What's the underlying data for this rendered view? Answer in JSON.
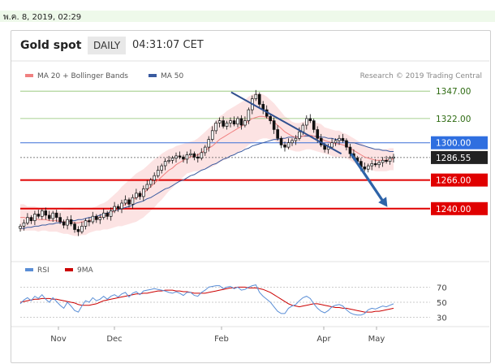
{
  "topbar": {
    "date_text": "พ.ค. 8, 2019, 02:29"
  },
  "header": {
    "title": "Gold spot",
    "period": "DAILY",
    "time": "04:31:07 CET"
  },
  "legend": {
    "ma20_label": "MA 20 + Bollinger Bands",
    "ma50_label": "MA 50",
    "research": "Research © 2019 Trading Central",
    "rsi_label": "RSI",
    "ma9_label": "9MA"
  },
  "colors": {
    "ma20": "#f08080",
    "ma50": "#3a5ba0",
    "band": "#fbd9d9",
    "resistance": "#8dc26f",
    "support": "#e00000",
    "pivot": "#3a6fd8",
    "trendline": "#2f4f8f",
    "arrow": "#2d63a8",
    "rsi": "#5a8ed6",
    "rsi_ma": "#cc0000"
  },
  "chart_data": [
    {
      "type": "line",
      "title": "Gold spot",
      "x_labels": [
        "Nov",
        "Dec",
        "Feb",
        "Apr",
        "May"
      ],
      "ylim": [
        1208,
        1356
      ],
      "levels": [
        {
          "value": 1347.0,
          "label": "1347.00",
          "kind": "resistance"
        },
        {
          "value": 1322.0,
          "label": "1322.00",
          "kind": "resistance"
        },
        {
          "value": 1300.0,
          "label": "1300.00",
          "kind": "pivot"
        },
        {
          "value": 1286.55,
          "label": "1286.55",
          "kind": "last"
        },
        {
          "value": 1266.0,
          "label": "1266.00",
          "kind": "support"
        },
        {
          "value": 1240.0,
          "label": "1240.00",
          "kind": "support"
        }
      ],
      "trendline": [
        [
          0.565,
          1346
        ],
        [
          0.86,
          1290
        ]
      ],
      "projection": [
        [
          0.86,
          1290
        ],
        [
          0.94,
          1240
        ]
      ],
      "close": [
        1224,
        1227,
        1232,
        1229,
        1235,
        1233,
        1238,
        1234,
        1231,
        1236,
        1232,
        1228,
        1225,
        1230,
        1226,
        1221,
        1219,
        1224,
        1229,
        1228,
        1233,
        1230,
        1232,
        1236,
        1233,
        1238,
        1242,
        1240,
        1245,
        1248,
        1244,
        1250,
        1254,
        1251,
        1258,
        1262,
        1266,
        1270,
        1275,
        1279,
        1283,
        1284,
        1286,
        1288,
        1287,
        1285,
        1289,
        1290,
        1287,
        1286,
        1291,
        1296,
        1303,
        1311,
        1318,
        1320,
        1315,
        1318,
        1320,
        1317,
        1322,
        1316,
        1320,
        1330,
        1340,
        1344,
        1335,
        1330,
        1324,
        1320,
        1312,
        1304,
        1298,
        1296,
        1300,
        1302,
        1304,
        1310,
        1316,
        1322,
        1320,
        1312,
        1304,
        1298,
        1294,
        1296,
        1300,
        1302,
        1304,
        1302,
        1296,
        1290,
        1286,
        1283,
        1278,
        1276,
        1279,
        1281,
        1280,
        1282,
        1284,
        1283,
        1286,
        1287
      ],
      "ma20": [
        1232,
        1232,
        1231,
        1231,
        1231,
        1230,
        1230,
        1230,
        1229,
        1229,
        1229,
        1228,
        1228,
        1228,
        1228,
        1227,
        1227,
        1228,
        1228,
        1229,
        1230,
        1231,
        1232,
        1233,
        1234,
        1236,
        1238,
        1240,
        1242,
        1244,
        1246,
        1248,
        1250,
        1252,
        1254,
        1257,
        1260,
        1263,
        1266,
        1269,
        1272,
        1275,
        1277,
        1280,
        1282,
        1284,
        1286,
        1287,
        1288,
        1289,
        1291,
        1293,
        1295,
        1297,
        1300,
        1303,
        1305,
        1307,
        1309,
        1311,
        1313,
        1315,
        1317,
        1320,
        1322,
        1323,
        1324,
        1324,
        1323,
        1321,
        1319,
        1316,
        1313,
        1310,
        1308,
        1306,
        1305,
        1305,
        1306,
        1307,
        1307,
        1306,
        1305,
        1304,
        1302,
        1301,
        1300,
        1299,
        1299,
        1298,
        1297,
        1295,
        1293,
        1291,
        1289,
        1287,
        1286,
        1285,
        1284,
        1284,
        1284,
        1284,
        1285,
        1285
      ],
      "ma50": [
        1222,
        1222,
        1223,
        1223,
        1224,
        1224,
        1225,
        1225,
        1226,
        1226,
        1227,
        1227,
        1228,
        1228,
        1229,
        1229,
        1230,
        1230,
        1231,
        1232,
        1232,
        1233,
        1234,
        1235,
        1236,
        1237,
        1238,
        1239,
        1240,
        1241,
        1242,
        1243,
        1245,
        1246,
        1247,
        1249,
        1250,
        1252,
        1254,
        1256,
        1258,
        1259,
        1261,
        1263,
        1265,
        1266,
        1268,
        1270,
        1271,
        1273,
        1275,
        1276,
        1278,
        1280,
        1281,
        1283,
        1285,
        1286,
        1288,
        1289,
        1291,
        1292,
        1294,
        1295,
        1297,
        1298,
        1299,
        1300,
        1301,
        1302,
        1303,
        1303,
        1304,
        1304,
        1305,
        1305,
        1305,
        1306,
        1306,
        1306,
        1306,
        1306,
        1306,
        1305,
        1305,
        1304,
        1304,
        1303,
        1303,
        1302,
        1301,
        1300,
        1300,
        1299,
        1298,
        1297,
        1296,
        1295,
        1294,
        1294,
        1293,
        1293,
        1292,
        1292
      ],
      "band_width": [
        12,
        12,
        11,
        11,
        11,
        11,
        10,
        10,
        10,
        10,
        10,
        10,
        11,
        11,
        12,
        12,
        12,
        12,
        12,
        11,
        11,
        11,
        12,
        12,
        13,
        14,
        15,
        16,
        18,
        19,
        20,
        21,
        22,
        22,
        22,
        22,
        22,
        22,
        21,
        21,
        20,
        19,
        18,
        17,
        16,
        15,
        14,
        14,
        14,
        15,
        16,
        17,
        18,
        19,
        20,
        21,
        21,
        22,
        22,
        22,
        22,
        22,
        22,
        22,
        22,
        22,
        21,
        20,
        19,
        18,
        17,
        16,
        15,
        14,
        14,
        13,
        13,
        13,
        13,
        13,
        13,
        13,
        13,
        13,
        12,
        12,
        12,
        12,
        12,
        11,
        11,
        11,
        11,
        11,
        11,
        11,
        10,
        10,
        10,
        10,
        10,
        10,
        10,
        10
      ]
    },
    {
      "type": "line",
      "title": "RSI",
      "ylim": [
        22,
        78
      ],
      "y_ticks": [
        70,
        50,
        30
      ],
      "rsi": [
        48,
        53,
        56,
        52,
        58,
        55,
        60,
        54,
        50,
        56,
        51,
        46,
        42,
        50,
        45,
        39,
        37,
        45,
        52,
        50,
        56,
        52,
        54,
        58,
        54,
        58,
        60,
        57,
        61,
        63,
        57,
        62,
        64,
        60,
        65,
        66,
        67,
        68,
        67,
        66,
        65,
        63,
        62,
        64,
        62,
        59,
        63,
        63,
        59,
        58,
        63,
        66,
        70,
        71,
        72,
        72,
        68,
        70,
        71,
        68,
        70,
        66,
        67,
        70,
        72,
        73,
        63,
        58,
        54,
        50,
        44,
        38,
        35,
        35,
        42,
        45,
        47,
        52,
        56,
        58,
        55,
        48,
        42,
        38,
        36,
        39,
        44,
        46,
        47,
        45,
        40,
        36,
        34,
        33,
        33,
        35,
        40,
        42,
        41,
        43,
        45,
        44,
        46,
        48
      ],
      "ma9": [
        50,
        51,
        52,
        53,
        54,
        54,
        55,
        55,
        55,
        54,
        54,
        53,
        52,
        51,
        50,
        49,
        47,
        46,
        46,
        46,
        47,
        48,
        50,
        52,
        53,
        54,
        55,
        56,
        57,
        58,
        59,
        60,
        61,
        61,
        62,
        62,
        63,
        64,
        65,
        65,
        66,
        66,
        66,
        65,
        65,
        64,
        64,
        63,
        62,
        62,
        62,
        62,
        63,
        64,
        65,
        66,
        67,
        68,
        69,
        69,
        70,
        70,
        70,
        69,
        69,
        69,
        68,
        67,
        65,
        63,
        60,
        57,
        54,
        51,
        48,
        46,
        45,
        44,
        45,
        46,
        47,
        48,
        48,
        47,
        46,
        45,
        44,
        43,
        43,
        42,
        42,
        41,
        40,
        39,
        38,
        37,
        37,
        37,
        38,
        38,
        39,
        40,
        41,
        42
      ]
    }
  ]
}
